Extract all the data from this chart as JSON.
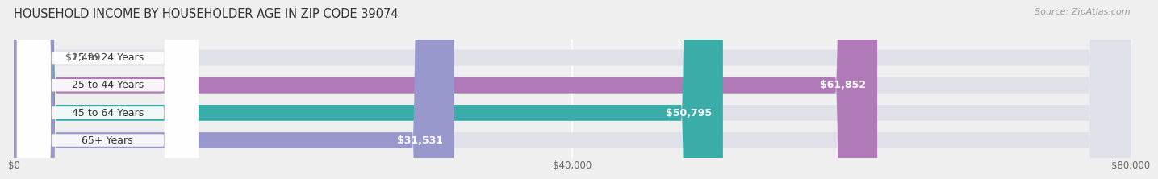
{
  "title": "HOUSEHOLD INCOME BY HOUSEHOLDER AGE IN ZIP CODE 39074",
  "source": "Source: ZipAtlas.com",
  "categories": [
    "15 to 24 Years",
    "25 to 44 Years",
    "45 to 64 Years",
    "65+ Years"
  ],
  "values": [
    2499,
    61852,
    50795,
    31531
  ],
  "bar_colors": [
    "#a8bedd",
    "#b07ab8",
    "#3aada8",
    "#9898cc"
  ],
  "bar_labels": [
    "$2,499",
    "$61,852",
    "$50,795",
    "$31,531"
  ],
  "label_outside": [
    true,
    false,
    false,
    false
  ],
  "xlim": [
    0,
    80000
  ],
  "xticks": [
    0,
    40000,
    80000
  ],
  "xticklabels": [
    "$0",
    "$40,000",
    "$80,000"
  ],
  "background_color": "#efefef",
  "bar_bg_color": "#e0e0e8",
  "title_fontsize": 10.5,
  "source_fontsize": 8,
  "label_fontsize": 9,
  "tick_fontsize": 8.5
}
